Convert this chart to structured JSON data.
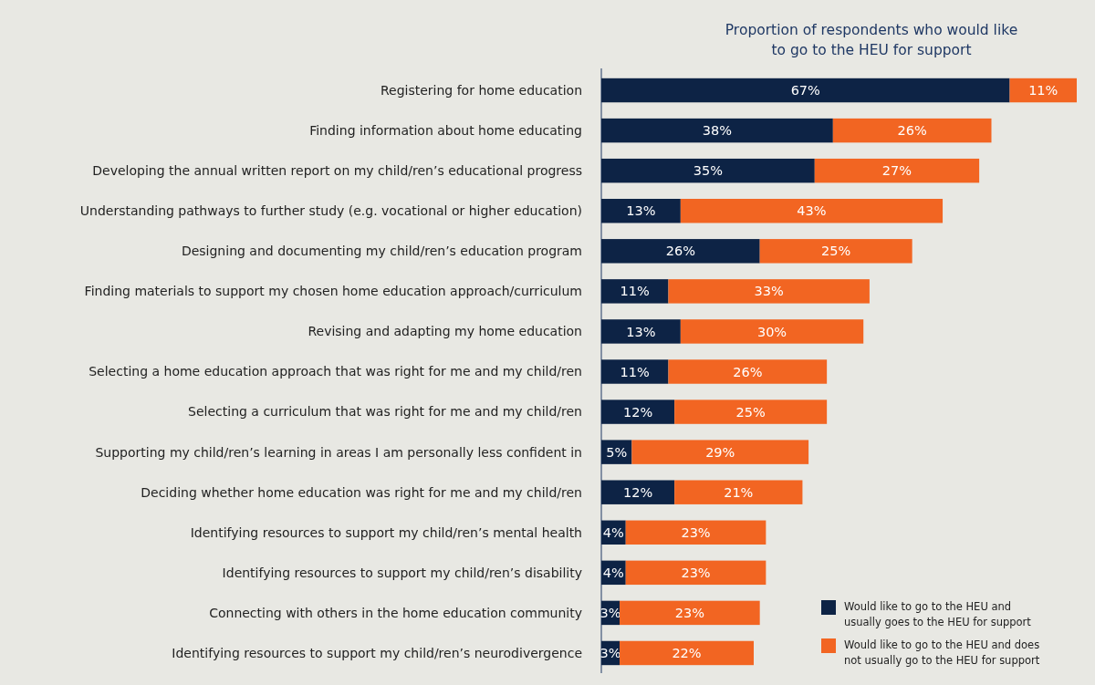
{
  "chart_data": {
    "type": "bar",
    "orientation": "horizontal",
    "stacked": true,
    "legend": "bottom right",
    "title": "Proportion of respondents who would like to go to the HEU for support",
    "categories": [
      "Registering for home education",
      "Finding information about home educating",
      "Developing the annual written report on my child/ren’s educational progress",
      "Understanding pathways to further study (e.g. vocational or higher education)",
      "Designing and documenting my child/ren’s education program",
      "Finding materials to support my chosen home education approach/curriculum",
      "Revising and adapting my home education",
      "Selecting a home education approach that was right for me and my child/ren",
      "Selecting a curriculum that was right for me and my child/ren",
      "Supporting my child/ren’s learning in areas I am personally less confident in",
      "Deciding whether home education was right for me and my child/ren",
      "Identifying resources to support my child/ren’s mental health",
      "Identifying resources to support my child/ren’s disability",
      "Connecting with others in the home education community",
      "Identifying resources to support my child/ren’s neurodivergence"
    ],
    "series": [
      {
        "name": "Would like to go to the HEU and usually goes to the HEU for support",
        "color": "#0d2345",
        "values": [
          67,
          38,
          35,
          13,
          26,
          11,
          13,
          11,
          12,
          5,
          12,
          4,
          4,
          3,
          3
        ],
        "value_labels": [
          "67%",
          "38%",
          "35%",
          "13%",
          "26%",
          "11%",
          "13%",
          "11%",
          "12%",
          "5%",
          "12%",
          "4%",
          "4%",
          "3%",
          "3%"
        ]
      },
      {
        "name": "Would like to go to the HEU and does not usually go to the HEU for support",
        "color": "#f26522",
        "values": [
          11,
          26,
          27,
          43,
          25,
          33,
          30,
          26,
          25,
          29,
          21,
          23,
          23,
          23,
          22
        ],
        "value_labels": [
          "11%",
          "26%",
          "27%",
          "43%",
          "25%",
          "33%",
          "30%",
          "26%",
          "25%",
          "29%",
          "21%",
          "23%",
          "23%",
          "23%",
          "22%"
        ]
      }
    ]
  }
}
